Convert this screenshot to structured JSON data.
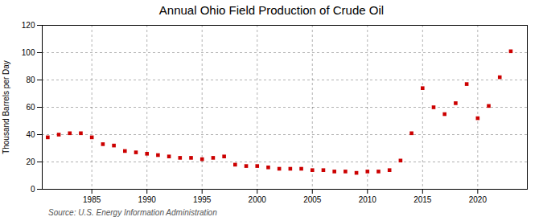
{
  "chart_data": {
    "type": "scatter",
    "title": "Annual Ohio Field Production of Crude Oil",
    "ylabel": "Thousand Barrels per Day",
    "caption": "Source: U.S. Energy Information Administration",
    "x": [
      1981,
      1982,
      1983,
      1984,
      1985,
      1986,
      1987,
      1988,
      1989,
      1990,
      1991,
      1992,
      1993,
      1994,
      1995,
      1996,
      1997,
      1998,
      1999,
      2000,
      2001,
      2002,
      2003,
      2004,
      2005,
      2006,
      2007,
      2008,
      2009,
      2010,
      2011,
      2012,
      2013,
      2014,
      2015,
      2016,
      2017,
      2018,
      2019,
      2020,
      2021,
      2022,
      2023
    ],
    "values": [
      38,
      40,
      41,
      41,
      38,
      33,
      32,
      28,
      27,
      26,
      25,
      24,
      23,
      23,
      22,
      23,
      24,
      18,
      17,
      17,
      16,
      15,
      15,
      15,
      14,
      14,
      13,
      13,
      12,
      13,
      13,
      14,
      21,
      41,
      74,
      60,
      55,
      63,
      77,
      52,
      61,
      82,
      101
    ],
    "color": "#cc0000",
    "marker": "square",
    "xlim": [
      1980.5,
      2024.5
    ],
    "ylim": [
      0,
      120
    ],
    "xticks": [
      1985,
      1990,
      1995,
      2000,
      2005,
      2010,
      2015,
      2020
    ],
    "yticks": [
      0,
      20,
      40,
      60,
      80,
      100,
      120
    ],
    "grid": true
  }
}
